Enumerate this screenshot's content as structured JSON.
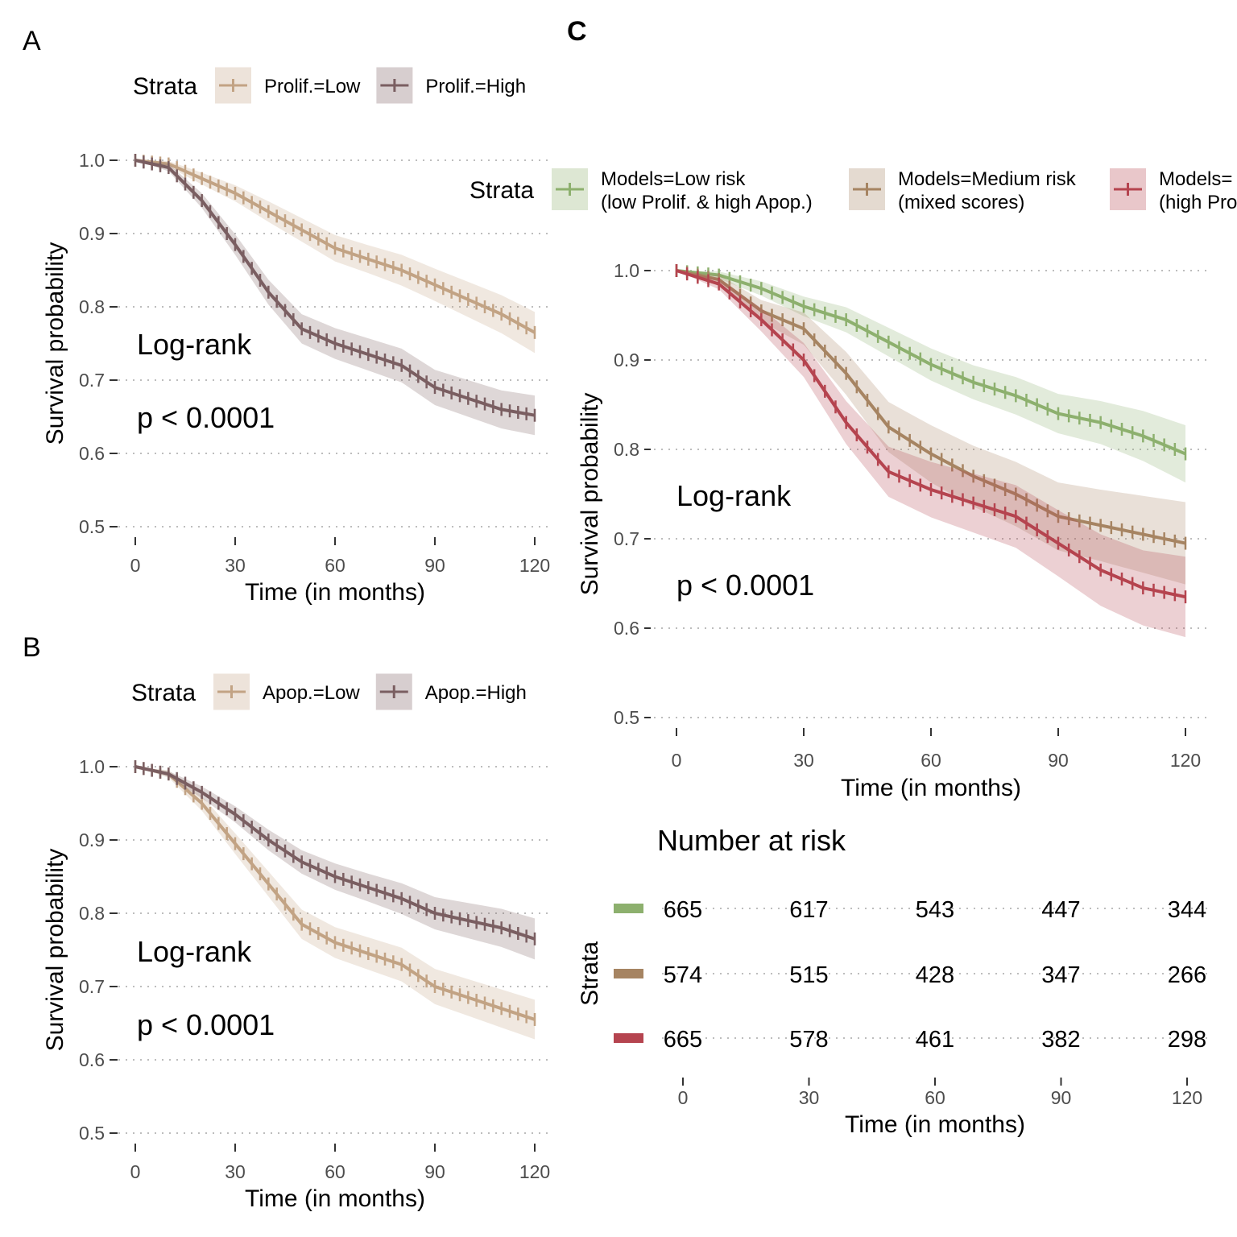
{
  "panels": {
    "A": {
      "letter": "A"
    },
    "B": {
      "letter": "B"
    },
    "C": {
      "letter": "C"
    }
  },
  "chart_data": [
    {
      "id": "A",
      "type": "line",
      "legend_title": "Strata",
      "legend_position": "top",
      "xlabel": "Time (in months)",
      "ylabel": "Survival probability",
      "x_ticks": [
        0,
        30,
        60,
        90,
        120
      ],
      "y_ticks": [
        "0.5",
        "0.6",
        "0.7",
        "0.8",
        "0.9",
        "1.0"
      ],
      "xlim": [
        0,
        120
      ],
      "ylim": [
        0.5,
        1.0
      ],
      "grid": "horizontal dotted",
      "annotation": {
        "line1": "Log-rank",
        "line2": "p < 0.0001"
      },
      "series": [
        {
          "name": "Prolif.=Low",
          "color": "#C2A384",
          "x": [
            0,
            10,
            20,
            30,
            40,
            50,
            60,
            70,
            80,
            90,
            100,
            110,
            120
          ],
          "y": [
            1.0,
            0.995,
            0.975,
            0.955,
            0.93,
            0.905,
            0.88,
            0.865,
            0.85,
            0.83,
            0.81,
            0.79,
            0.765
          ],
          "ci": [
            0.0,
            0.004,
            0.008,
            0.011,
            0.014,
            0.016,
            0.018,
            0.019,
            0.021,
            0.022,
            0.024,
            0.026,
            0.028
          ]
        },
        {
          "name": "Prolif.=High",
          "color": "#7A5E61",
          "x": [
            0,
            10,
            20,
            30,
            40,
            50,
            60,
            70,
            80,
            90,
            100,
            110,
            120
          ],
          "y": [
            1.0,
            0.99,
            0.945,
            0.885,
            0.82,
            0.77,
            0.75,
            0.735,
            0.72,
            0.69,
            0.675,
            0.66,
            0.652
          ],
          "ci": [
            0.0,
            0.005,
            0.01,
            0.014,
            0.017,
            0.02,
            0.021,
            0.022,
            0.023,
            0.024,
            0.025,
            0.026,
            0.027
          ]
        }
      ]
    },
    {
      "id": "B",
      "type": "line",
      "legend_title": "Strata",
      "legend_position": "top",
      "xlabel": "Time (in months)",
      "ylabel": "Survival probability",
      "x_ticks": [
        0,
        30,
        60,
        90,
        120
      ],
      "y_ticks": [
        "0.5",
        "0.6",
        "0.7",
        "0.8",
        "0.9",
        "1.0"
      ],
      "xlim": [
        0,
        120
      ],
      "ylim": [
        0.5,
        1.0
      ],
      "grid": "horizontal dotted",
      "annotation": {
        "line1": "Log-rank",
        "line2": "p < 0.0001"
      },
      "series": [
        {
          "name": "Apop.=Low",
          "color": "#C2A384",
          "x": [
            0,
            10,
            20,
            30,
            40,
            50,
            60,
            70,
            80,
            90,
            100,
            110,
            120
          ],
          "y": [
            1.0,
            0.99,
            0.95,
            0.895,
            0.84,
            0.785,
            0.76,
            0.745,
            0.73,
            0.7,
            0.685,
            0.67,
            0.655
          ],
          "ci": [
            0.0,
            0.005,
            0.01,
            0.014,
            0.017,
            0.02,
            0.021,
            0.022,
            0.023,
            0.024,
            0.025,
            0.026,
            0.027
          ]
        },
        {
          "name": "Apop.=High",
          "color": "#7A5E61",
          "x": [
            0,
            10,
            20,
            30,
            40,
            50,
            60,
            70,
            80,
            90,
            100,
            110,
            120
          ],
          "y": [
            1.0,
            0.99,
            0.965,
            0.935,
            0.9,
            0.87,
            0.85,
            0.835,
            0.82,
            0.8,
            0.79,
            0.78,
            0.765
          ],
          "ci": [
            0.0,
            0.004,
            0.008,
            0.011,
            0.014,
            0.016,
            0.018,
            0.019,
            0.021,
            0.022,
            0.024,
            0.026,
            0.028
          ]
        }
      ]
    },
    {
      "id": "C",
      "type": "line",
      "legend_title": "Strata",
      "legend_position": "top",
      "xlabel": "Time (in months)",
      "ylabel": "Survival probability",
      "x_ticks": [
        0,
        30,
        60,
        90,
        120
      ],
      "y_ticks": [
        "0.5",
        "0.6",
        "0.7",
        "0.8",
        "0.9",
        "1.0"
      ],
      "xlim": [
        0,
        120
      ],
      "ylim": [
        0.5,
        1.0
      ],
      "grid": "horizontal dotted",
      "annotation": {
        "line1": "Log-rank",
        "line2": "p < 0.0001"
      },
      "series": [
        {
          "name": "Models=Low risk",
          "name_line2": "(low Prolif. & high Apop.)",
          "color": "#8DB06E",
          "x": [
            0,
            10,
            20,
            30,
            40,
            50,
            60,
            70,
            80,
            90,
            100,
            110,
            120
          ],
          "y": [
            1.0,
            0.995,
            0.98,
            0.96,
            0.945,
            0.92,
            0.895,
            0.875,
            0.86,
            0.84,
            0.83,
            0.815,
            0.795
          ],
          "ci": [
            0.0,
            0.004,
            0.008,
            0.011,
            0.014,
            0.016,
            0.018,
            0.019,
            0.021,
            0.022,
            0.024,
            0.028,
            0.032
          ]
        },
        {
          "name": "Models=Medium risk",
          "name_line2": "(mixed scores)",
          "color": "#A68462",
          "x": [
            0,
            10,
            20,
            30,
            40,
            50,
            60,
            70,
            80,
            90,
            100,
            110,
            120
          ],
          "y": [
            1.0,
            0.99,
            0.955,
            0.935,
            0.885,
            0.825,
            0.795,
            0.77,
            0.75,
            0.725,
            0.715,
            0.705,
            0.695
          ],
          "ci": [
            0.0,
            0.005,
            0.012,
            0.018,
            0.024,
            0.028,
            0.032,
            0.034,
            0.036,
            0.038,
            0.04,
            0.043,
            0.046
          ]
        },
        {
          "name": "Models=",
          "name_line2": "(high Pro",
          "color": "#B5444F",
          "x": [
            0,
            10,
            20,
            30,
            40,
            50,
            60,
            70,
            80,
            90,
            100,
            110,
            120
          ],
          "y": [
            1.0,
            0.985,
            0.945,
            0.9,
            0.83,
            0.775,
            0.755,
            0.74,
            0.725,
            0.695,
            0.665,
            0.645,
            0.635
          ],
          "ci": [
            0.0,
            0.006,
            0.013,
            0.019,
            0.024,
            0.028,
            0.031,
            0.033,
            0.035,
            0.037,
            0.04,
            0.042,
            0.045
          ]
        }
      ],
      "risk_table": {
        "title": "Number at risk",
        "ylabel": "Strata",
        "xlabel": "Time (in months)",
        "x_ticks": [
          0,
          30,
          60,
          90,
          120
        ],
        "rows": [
          {
            "color": "#8DB06E",
            "values": [
              665,
              617,
              543,
              447,
              344
            ]
          },
          {
            "color": "#A68462",
            "values": [
              574,
              515,
              428,
              347,
              266
            ]
          },
          {
            "color": "#B5444F",
            "values": [
              665,
              578,
              461,
              382,
              298
            ]
          }
        ]
      }
    }
  ]
}
